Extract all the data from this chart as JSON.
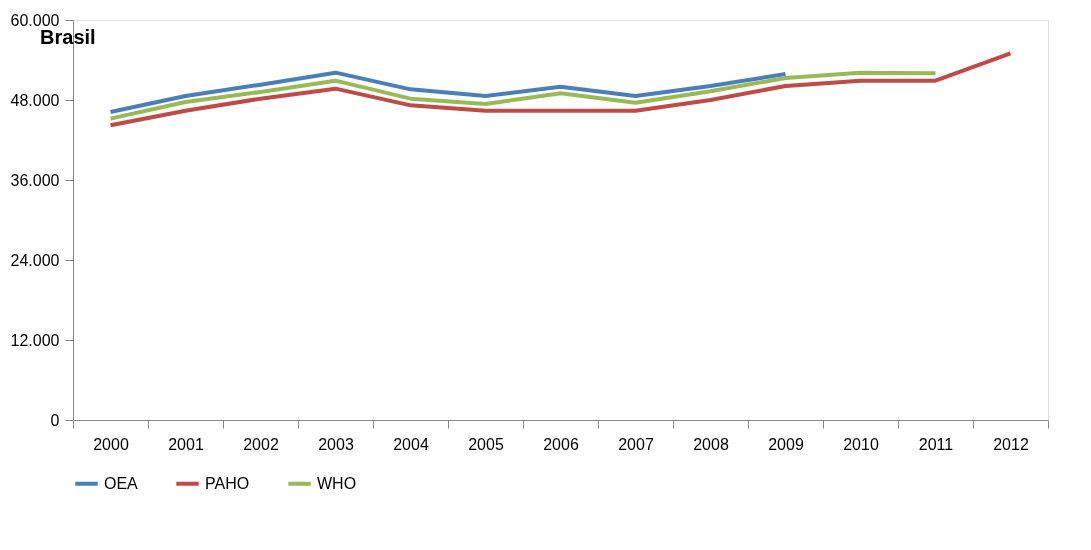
{
  "chart_data": {
    "type": "line",
    "title": "Brasil",
    "categories": [
      "2000",
      "2001",
      "2002",
      "2003",
      "2004",
      "2005",
      "2006",
      "2007",
      "2008",
      "2009",
      "2010",
      "2011",
      "2012"
    ],
    "series": [
      {
        "name": "OEA",
        "color": "#4a7ebb",
        "values": [
          46200,
          48600,
          50300,
          52100,
          49600,
          48600,
          50000,
          48600,
          50100,
          51900,
          null,
          null,
          null
        ]
      },
      {
        "name": "PAHO",
        "color": "#be4b48",
        "values": [
          44200,
          46400,
          48200,
          49700,
          47200,
          46400,
          46400,
          46400,
          48000,
          50100,
          50900,
          50900,
          55000
        ]
      },
      {
        "name": "WHO",
        "color": "#98b954",
        "values": [
          45200,
          47700,
          49200,
          50900,
          48200,
          47400,
          49000,
          47600,
          49300,
          51300,
          52100,
          52000,
          null
        ]
      }
    ],
    "ylim": [
      0,
      60000
    ],
    "yticks": [
      {
        "value": 0,
        "label": "0"
      },
      {
        "value": 12000,
        "label": "12.000"
      },
      {
        "value": 24000,
        "label": "24.000"
      },
      {
        "value": 36000,
        "label": "36.000"
      },
      {
        "value": 48000,
        "label": "48.000"
      },
      {
        "value": 60000,
        "label": "60.000"
      }
    ],
    "legend": "bottom",
    "grid": false,
    "marker": "none",
    "line_style": "solid"
  }
}
